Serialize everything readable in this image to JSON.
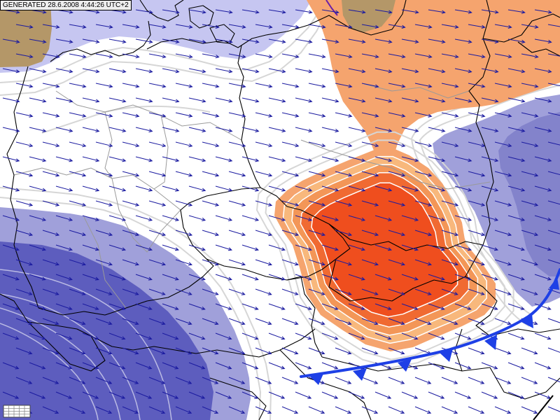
{
  "header": {
    "generated_label": "GENERATED 28.6.2008 4:44:26 UTC+2"
  },
  "colors": {
    "background": "#ffffff",
    "lavender": "#c6c6f1",
    "tan": "#b49768",
    "warm_light": "#f5a46e",
    "warm_band": "#f8b87c",
    "warm_mid": "#f39657",
    "warm_strong": "#f06a32",
    "warm_core": "#ef4e1e",
    "cold_light": "#a0a0da",
    "cold_mid": "#8383cb",
    "cold_dark": "#5d5dbe",
    "cold_front": "#1e40e6",
    "wind_arrow": "#1b1ba0",
    "border": "#000000",
    "state_line": "#9a9a9a",
    "isoline": "#d6d6d6",
    "purple_line": "#6a1fa8"
  }
}
